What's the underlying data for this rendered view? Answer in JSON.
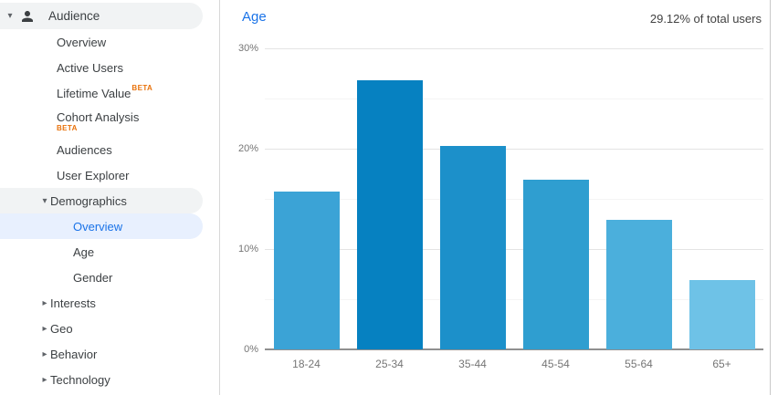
{
  "icons": {
    "chevron_down": "▾",
    "chevron_right": "▸"
  },
  "sidebar": {
    "section_label": "Audience",
    "items": [
      {
        "label": "Overview"
      },
      {
        "label": "Active Users"
      },
      {
        "label": "Lifetime Value",
        "badge": "BETA"
      },
      {
        "label": "Cohort Analysis",
        "badge": "BETA"
      },
      {
        "label": "Audiences"
      },
      {
        "label": "User Explorer"
      },
      {
        "label": "Demographics",
        "expanded": true
      },
      {
        "label": "Overview",
        "selected": true
      },
      {
        "label": "Age"
      },
      {
        "label": "Gender"
      },
      {
        "label": "Interests",
        "expanded": false
      },
      {
        "label": "Geo",
        "expanded": false
      },
      {
        "label": "Behavior",
        "expanded": false
      },
      {
        "label": "Technology",
        "expanded": false
      }
    ]
  },
  "chart_header": {
    "title": "Age",
    "total_users": "29.12% of total users"
  },
  "chart_data": {
    "type": "bar",
    "title": "Age",
    "subtitle": "29.12% of total users",
    "categories": [
      "18-24",
      "25-34",
      "35-44",
      "45-54",
      "55-64",
      "65+"
    ],
    "values": [
      15.7,
      26.8,
      20.3,
      16.9,
      12.9,
      6.9
    ],
    "bar_colors": [
      "#3ba3d6",
      "#0681c1",
      "#1c90ca",
      "#2f9ed0",
      "#4bafdc",
      "#6ec2e7"
    ],
    "xlabel": "",
    "ylabel": "",
    "ylim": [
      0,
      30
    ],
    "y_major_ticks": [
      {
        "value": 0,
        "label": "0%"
      },
      {
        "value": 10,
        "label": "10%"
      },
      {
        "value": 20,
        "label": "20%"
      },
      {
        "value": 30,
        "label": "30%"
      }
    ],
    "y_minor_ticks": [
      5,
      15,
      25
    ],
    "grid": true,
    "legend": false
  },
  "colors": {
    "accent_blue": "#1a73e8",
    "selected_item_bg": "#e8f0fe",
    "group_pill_bg": "#f1f3f4",
    "beta_orange": "#e8710a",
    "tick_gray": "#757575"
  }
}
